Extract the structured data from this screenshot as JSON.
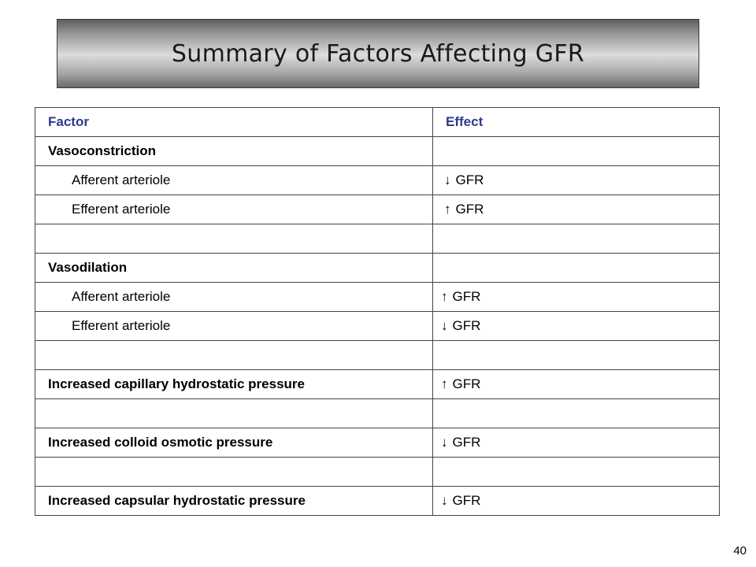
{
  "title": "Summary of Factors Affecting GFR",
  "table": {
    "header": {
      "factor": "Factor",
      "effect": "Effect"
    },
    "rows": [
      {
        "factor": "Vasoconstriction",
        "arrow": "",
        "effect": ""
      },
      {
        "factor": "Afferent arteriole",
        "arrow": "↓",
        "effect": "GFR"
      },
      {
        "factor": "Efferent arteriole",
        "arrow": "↑",
        "effect": "GFR"
      },
      {
        "factor": "",
        "arrow": "",
        "effect": ""
      },
      {
        "factor": "Vasodilation",
        "arrow": "",
        "effect": ""
      },
      {
        "factor": "Afferent arteriole",
        "arrow": "↑",
        "effect": "GFR"
      },
      {
        "factor": "Efferent arteriole",
        "arrow": "↓",
        "effect": "GFR"
      },
      {
        "factor": "",
        "arrow": "",
        "effect": ""
      },
      {
        "factor": "Increased capillary hydrostatic pressure",
        "arrow": "↑",
        "effect": "GFR"
      },
      {
        "factor": "",
        "arrow": "",
        "effect": ""
      },
      {
        "factor": "Increased colloid osmotic pressure",
        "arrow": "↓",
        "effect": "GFR"
      },
      {
        "factor": "",
        "arrow": "",
        "effect": ""
      },
      {
        "factor": "Increased capsular hydrostatic pressure",
        "arrow": "↓",
        "effect": "GFR"
      }
    ]
  },
  "page_number": "40"
}
